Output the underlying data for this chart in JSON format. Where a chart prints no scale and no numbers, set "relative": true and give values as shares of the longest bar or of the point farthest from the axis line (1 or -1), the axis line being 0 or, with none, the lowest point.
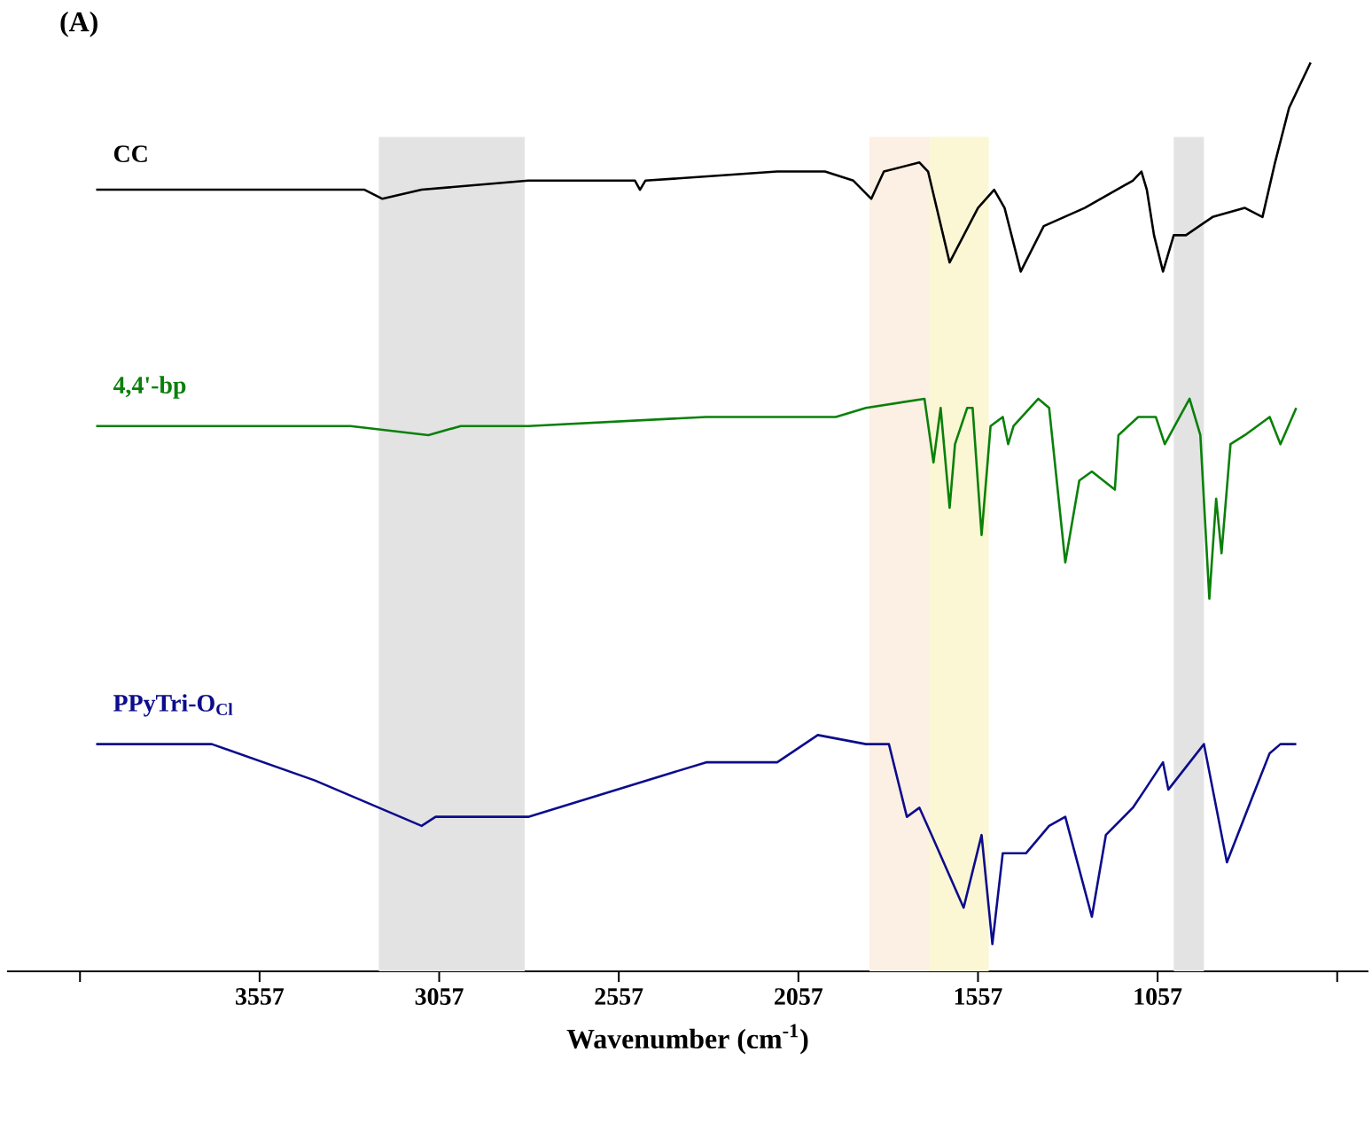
{
  "chart_data": {
    "type": "line",
    "title": "(A)",
    "xlabel": "Wavenumber (cm$^{-1}$)",
    "relative": true,
    "xlim": [
      4260,
      470
    ],
    "xticks": [
      {
        "value": 4057,
        "label": null
      },
      3557,
      3057,
      2557,
      2057,
      1557,
      1057,
      {
        "value": 557,
        "label": null
      }
    ],
    "bands": [
      {
        "axis": "x",
        "from": 3225,
        "to": 2819,
        "color": "#e3e3e3"
      },
      {
        "axis": "x",
        "from": 1859,
        "to": 1691,
        "color": "#fcefe3"
      },
      {
        "axis": "x",
        "from": 1691,
        "to": 1527,
        "color": "#fbf7d5"
      },
      {
        "axis": "x",
        "from": 1012,
        "to": 928,
        "color": "#e3e3e3"
      }
    ],
    "series": [
      {
        "name": "CC",
        "color": "#000000",
        "x": [
          4012,
          3552,
          3265,
          3215,
          3106,
          2809,
          2512,
          2498,
          2483,
          2116,
          1983,
          1904,
          1854,
          1819,
          1720,
          1696,
          1636,
          1557,
          1512,
          1483,
          1438,
          1374,
          1260,
          1126,
          1102,
          1087,
          1067,
          1042,
          1012,
          978,
          904,
          814,
          765,
          730,
          691,
          631
        ],
        "values": [
          0.86,
          0.86,
          0.86,
          0.85,
          0.86,
          0.87,
          0.87,
          0.86,
          0.87,
          0.88,
          0.88,
          0.87,
          0.85,
          0.88,
          0.89,
          0.88,
          0.78,
          0.84,
          0.86,
          0.84,
          0.77,
          0.82,
          0.84,
          0.87,
          0.88,
          0.86,
          0.81,
          0.77,
          0.81,
          0.81,
          0.83,
          0.84,
          0.83,
          0.89,
          0.95,
          1.0
        ]
      },
      {
        "name": "4,4'-bp",
        "color": "#0a800a",
        "x": [
          4012,
          3304,
          3087,
          2997,
          2809,
          2314,
          2116,
          1953,
          1869,
          1706,
          1681,
          1661,
          1636,
          1621,
          1587,
          1572,
          1547,
          1522,
          1488,
          1473,
          1458,
          1389,
          1359,
          1314,
          1275,
          1240,
          1176,
          1166,
          1111,
          1062,
          1037,
          968,
          938,
          913,
          894,
          879,
          854,
          814,
          745,
          715,
          671
        ],
        "values": [
          0.6,
          0.6,
          0.59,
          0.6,
          0.6,
          0.61,
          0.61,
          0.61,
          0.62,
          0.63,
          0.56,
          0.62,
          0.51,
          0.58,
          0.62,
          0.62,
          0.48,
          0.6,
          0.61,
          0.58,
          0.6,
          0.63,
          0.62,
          0.45,
          0.54,
          0.55,
          0.53,
          0.59,
          0.61,
          0.61,
          0.58,
          0.63,
          0.59,
          0.41,
          0.52,
          0.46,
          0.58,
          0.59,
          0.61,
          0.58,
          0.62
        ]
      },
      {
        "name": "PPyTri-O$_{Cl}$",
        "color": "#0c0c8c",
        "x": [
          4012,
          3690,
          3403,
          3106,
          3067,
          2809,
          2314,
          2116,
          2003,
          1869,
          1805,
          1755,
          1720,
          1686,
          1597,
          1547,
          1517,
          1488,
          1423,
          1359,
          1314,
          1240,
          1201,
          1126,
          1092,
          1042,
          1027,
          928,
          864,
          795,
          745,
          715,
          671
        ],
        "values": [
          0.25,
          0.25,
          0.21,
          0.16,
          0.17,
          0.17,
          0.23,
          0.23,
          0.26,
          0.25,
          0.25,
          0.17,
          0.18,
          0.15,
          0.07,
          0.15,
          0.03,
          0.13,
          0.13,
          0.16,
          0.17,
          0.06,
          0.15,
          0.18,
          0.2,
          0.23,
          0.2,
          0.25,
          0.12,
          0.19,
          0.24,
          0.25,
          0.25
        ]
      }
    ]
  }
}
